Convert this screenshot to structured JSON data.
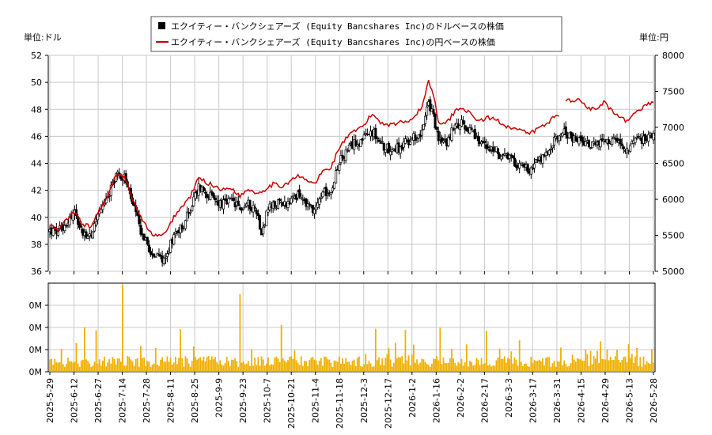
{
  "chart_data": {
    "type": "candlestick",
    "legend": [
      {
        "label": "エクイティー・バンクシェアーズ (Equity Bancshares Inc)のドルベースの株価",
        "color": "#000000",
        "marker": "square"
      },
      {
        "label": "エクイティー・バンクシェアーズ (Equity Bancshares Inc)の円ベースの株価",
        "color": "#cc0000",
        "marker": "line"
      }
    ],
    "legend_position": "top-center",
    "y_left": {
      "unit_label": "単位:ドル",
      "ticks": [
        "36",
        "38",
        "40",
        "42",
        "44",
        "46",
        "48",
        "50",
        "52"
      ],
      "range": [
        36,
        52
      ]
    },
    "y_right": {
      "unit_label": "単位:円",
      "ticks": [
        "5000",
        "5500",
        "6000",
        "6500",
        "7000",
        "7500",
        "8000"
      ],
      "range": [
        5000,
        8000
      ]
    },
    "volume": {
      "ticks": [
        "0M",
        "0M",
        "0M",
        "0M"
      ],
      "color": "#f0b000"
    },
    "x_ticks": [
      "2025-5-29",
      "2025-6-12",
      "2025-6-27",
      "2025-7-14",
      "2025-7-28",
      "2025-8-11",
      "2025-8-25",
      "2025-9-9",
      "2025-9-23",
      "2025-10-7",
      "2025-10-21",
      "2025-11-4",
      "2025-11-18",
      "2025-12-3",
      "2025-12-17",
      "2026-1-2",
      "2026-1-16",
      "2026-2-2",
      "2026-2-17",
      "2026-3-3",
      "2026-3-17",
      "2026-3-31",
      "2026-4-15",
      "2026-4-29",
      "2026-5-13",
      "2026-5-28"
    ],
    "usd_close_keypoints": [
      [
        0,
        39.0
      ],
      [
        5,
        38.9
      ],
      [
        10,
        39.6
      ],
      [
        15,
        40.4
      ],
      [
        20,
        38.8
      ],
      [
        25,
        38.6
      ],
      [
        30,
        40.6
      ],
      [
        35,
        41.5
      ],
      [
        40,
        43.2
      ],
      [
        45,
        43.0
      ],
      [
        50,
        41.0
      ],
      [
        55,
        39.0
      ],
      [
        60,
        37.7
      ],
      [
        65,
        37.0
      ],
      [
        70,
        37.0
      ],
      [
        75,
        38.8
      ],
      [
        80,
        39.4
      ],
      [
        85,
        40.6
      ],
      [
        90,
        42.3
      ],
      [
        95,
        41.8
      ],
      [
        100,
        41.2
      ],
      [
        105,
        41.0
      ],
      [
        110,
        41.2
      ],
      [
        115,
        40.6
      ],
      [
        120,
        41.0
      ],
      [
        125,
        40.5
      ],
      [
        128,
        38.9
      ],
      [
        132,
        40.6
      ],
      [
        138,
        41.0
      ],
      [
        145,
        41.0
      ],
      [
        150,
        41.6
      ],
      [
        155,
        41.0
      ],
      [
        160,
        40.6
      ],
      [
        165,
        41.8
      ],
      [
        170,
        42.1
      ],
      [
        175,
        44.1
      ],
      [
        180,
        44.9
      ],
      [
        185,
        45.6
      ],
      [
        190,
        45.8
      ],
      [
        195,
        46.4
      ],
      [
        200,
        45.4
      ],
      [
        205,
        45.1
      ],
      [
        210,
        45.1
      ],
      [
        215,
        45.5
      ],
      [
        220,
        45.9
      ],
      [
        225,
        46.4
      ],
      [
        229,
        48.4
      ],
      [
        232,
        47.5
      ],
      [
        235,
        45.7
      ],
      [
        240,
        45.5
      ],
      [
        245,
        46.8
      ],
      [
        250,
        47.0
      ],
      [
        255,
        46.2
      ],
      [
        260,
        45.6
      ],
      [
        265,
        45.1
      ],
      [
        270,
        44.9
      ],
      [
        275,
        44.4
      ],
      [
        280,
        44.2
      ],
      [
        285,
        43.8
      ],
      [
        290,
        43.6
      ],
      [
        295,
        44.1
      ],
      [
        300,
        44.6
      ],
      [
        305,
        45.6
      ],
      [
        310,
        46.3
      ],
      [
        315,
        45.9
      ],
      [
        320,
        45.6
      ],
      [
        325,
        45.5
      ],
      [
        330,
        45.3
      ],
      [
        335,
        45.5
      ],
      [
        340,
        45.7
      ],
      [
        345,
        45.3
      ],
      [
        350,
        45.2
      ],
      [
        355,
        45.6
      ],
      [
        360,
        45.9
      ],
      [
        365,
        46.0
      ]
    ],
    "jpy_keypoints": [
      [
        0,
        5650
      ],
      [
        5,
        5560
      ],
      [
        10,
        5720
      ],
      [
        15,
        5820
      ],
      [
        20,
        5640
      ],
      [
        25,
        5620
      ],
      [
        30,
        5860
      ],
      [
        35,
        6020
      ],
      [
        40,
        6350
      ],
      [
        45,
        6320
      ],
      [
        50,
        6000
      ],
      [
        55,
        5750
      ],
      [
        60,
        5550
      ],
      [
        65,
        5480
      ],
      [
        70,
        5520
      ],
      [
        75,
        5760
      ],
      [
        80,
        5900
      ],
      [
        85,
        6040
      ],
      [
        90,
        6300
      ],
      [
        95,
        6230
      ],
      [
        100,
        6180
      ],
      [
        105,
        6130
      ],
      [
        110,
        6160
      ],
      [
        115,
        6040
      ],
      [
        120,
        6150
      ],
      [
        125,
        6080
      ],
      [
        130,
        6140
      ],
      [
        135,
        6210
      ],
      [
        140,
        6180
      ],
      [
        145,
        6250
      ],
      [
        150,
        6320
      ],
      [
        155,
        6270
      ],
      [
        160,
        6210
      ],
      [
        165,
        6390
      ],
      [
        170,
        6440
      ],
      [
        175,
        6720
      ],
      [
        180,
        6870
      ],
      [
        185,
        6950
      ],
      [
        190,
        7030
      ],
      [
        195,
        7190
      ],
      [
        200,
        7070
      ],
      [
        205,
        7040
      ],
      [
        210,
        7060
      ],
      [
        215,
        7080
      ],
      [
        220,
        7140
      ],
      [
        225,
        7280
      ],
      [
        229,
        7650
      ],
      [
        232,
        7450
      ],
      [
        235,
        7080
      ],
      [
        240,
        7060
      ],
      [
        245,
        7230
      ],
      [
        250,
        7280
      ],
      [
        255,
        7160
      ],
      [
        260,
        7090
      ],
      [
        265,
        7130
      ],
      [
        270,
        7110
      ],
      [
        275,
        7030
      ],
      [
        280,
        6990
      ],
      [
        285,
        6950
      ],
      [
        290,
        6910
      ],
      [
        295,
        6980
      ],
      [
        300,
        7040
      ],
      [
        305,
        7150
      ],
      [
        308,
        7180
      ],
      [
        312,
        7360
      ],
      [
        315,
        7380
      ],
      [
        320,
        7380
      ],
      [
        325,
        7290
      ],
      [
        330,
        7230
      ],
      [
        335,
        7350
      ],
      [
        340,
        7220
      ],
      [
        345,
        7120
      ],
      [
        350,
        7080
      ],
      [
        355,
        7230
      ],
      [
        360,
        7300
      ],
      [
        365,
        7360
      ]
    ],
    "jpy_gaps": [
      [
        309,
        311
      ]
    ]
  }
}
